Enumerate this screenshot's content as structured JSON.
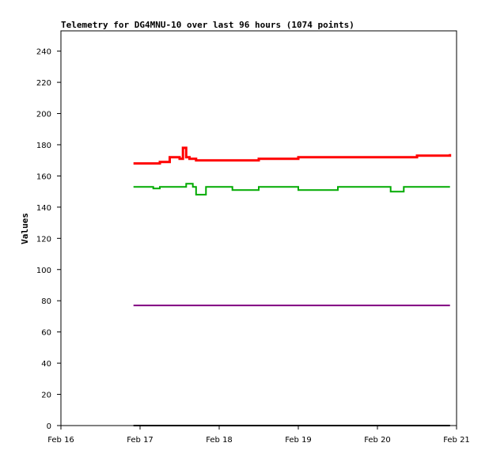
{
  "chart_data": {
    "type": "line",
    "title": "Telemetry for DG4MNU-10 over last 96 hours (1074 points)",
    "xlabel": "",
    "ylabel": "Values",
    "x_ticks": [
      "Feb 16",
      "Feb 17",
      "Feb 18",
      "Feb 19",
      "Feb 20",
      "Feb 21"
    ],
    "y_ticks": [
      0,
      20,
      40,
      60,
      80,
      100,
      120,
      140,
      160,
      180,
      200,
      220,
      240
    ],
    "xlim": [
      "2024-02-16 00:00",
      "2024-02-21 00:00"
    ],
    "ylim": [
      0,
      253
    ],
    "grid": false,
    "series": [
      {
        "color": "#ff0000",
        "x": [
          "2024-02-16 22:00",
          "2024-02-17 06:00",
          "2024-02-17 09:00",
          "2024-02-17 12:00",
          "2024-02-17 13:00",
          "2024-02-17 14:00",
          "2024-02-17 15:00",
          "2024-02-17 17:00",
          "2024-02-18 00:00",
          "2024-02-18 12:00",
          "2024-02-19 00:00",
          "2024-02-19 12:00",
          "2024-02-20 00:00",
          "2024-02-20 12:00",
          "2024-02-20 20:00",
          "2024-02-20 22:00"
        ],
        "values": [
          168,
          169,
          172,
          171,
          178,
          172,
          171,
          170,
          170,
          171,
          172,
          172,
          172,
          173,
          173,
          174
        ]
      },
      {
        "color": "#00aa00",
        "x": [
          "2024-02-16 22:00",
          "2024-02-17 04:00",
          "2024-02-17 06:00",
          "2024-02-17 10:00",
          "2024-02-17 14:00",
          "2024-02-17 16:00",
          "2024-02-17 17:00",
          "2024-02-17 20:00",
          "2024-02-18 00:00",
          "2024-02-18 04:00",
          "2024-02-18 12:00",
          "2024-02-18 20:00",
          "2024-02-19 00:00",
          "2024-02-19 12:00",
          "2024-02-20 00:00",
          "2024-02-20 04:00",
          "2024-02-20 08:00",
          "2024-02-20 12:00",
          "2024-02-20 22:00"
        ],
        "values": [
          153,
          152,
          153,
          153,
          155,
          153,
          148,
          153,
          153,
          151,
          153,
          153,
          151,
          153,
          153,
          150,
          153,
          153,
          153
        ]
      },
      {
        "color": "#800080",
        "x": [
          "2024-02-16 22:00",
          "2024-02-20 22:00"
        ],
        "values": [
          77,
          77
        ]
      },
      {
        "color": "#000000",
        "x": [
          "2024-02-16 22:00",
          "2024-02-20 22:00"
        ],
        "values": [
          0,
          0
        ]
      }
    ]
  }
}
